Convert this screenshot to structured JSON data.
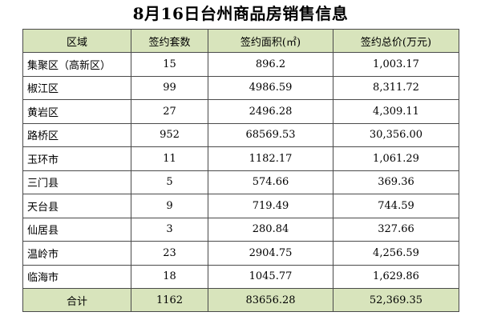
{
  "title": "8月16日台州商品房销售信息",
  "colors": {
    "header_bg": "#d8e4bc",
    "border": "#4a4a4a"
  },
  "table": {
    "headers": [
      "区域",
      "签约套数",
      "签约面积(㎡)",
      "签约总价(万元)"
    ],
    "rows": [
      {
        "region": "集聚区（高新区）",
        "units": "15",
        "area": "896.2",
        "price": "1,003.17"
      },
      {
        "region": "椒江区",
        "units": "99",
        "area": "4986.59",
        "price": "8,311.72"
      },
      {
        "region": "黄岩区",
        "units": "27",
        "area": "2496.28",
        "price": "4,309.11"
      },
      {
        "region": "路桥区",
        "units": "952",
        "area": "68569.53",
        "price": "30,356.00"
      },
      {
        "region": "玉环市",
        "units": "11",
        "area": "1182.17",
        "price": "1,061.29"
      },
      {
        "region": "三门县",
        "units": "5",
        "area": "574.66",
        "price": "369.36"
      },
      {
        "region": "天台县",
        "units": "9",
        "area": "719.49",
        "price": "744.59"
      },
      {
        "region": "仙居县",
        "units": "3",
        "area": "280.84",
        "price": "327.66"
      },
      {
        "region": "温岭市",
        "units": "23",
        "area": "2904.75",
        "price": "4,256.59"
      },
      {
        "region": "临海市",
        "units": "18",
        "area": "1045.77",
        "price": "1,629.86"
      }
    ],
    "total": {
      "region": "合计",
      "units": "1162",
      "area": "83656.28",
      "price": "52,369.35"
    }
  }
}
